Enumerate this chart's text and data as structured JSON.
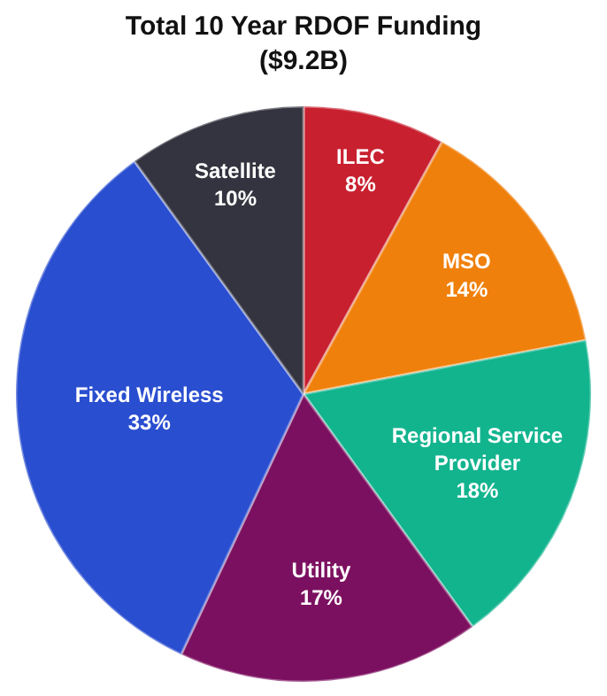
{
  "chart_data": {
    "type": "pie",
    "title": "Total 10 Year RDOF Funding",
    "subtitle": "($9.2B)",
    "categories": [
      "ILEC",
      "MSO",
      "Regional Service Provider",
      "Utility",
      "Fixed Wireless",
      "Satellite"
    ],
    "values": [
      8,
      14,
      18,
      17,
      33,
      10
    ],
    "value_labels": [
      "8%",
      "14%",
      "18%",
      "17%",
      "33%",
      "10%"
    ],
    "colors": [
      "#c8202f",
      "#f0800c",
      "#12b48e",
      "#7c1060",
      "#2a4ed0",
      "#33343f"
    ],
    "legend": false
  }
}
